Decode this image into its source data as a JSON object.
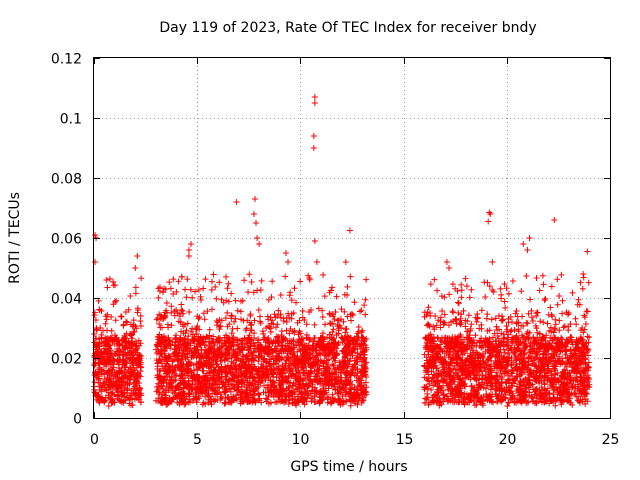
{
  "chart_data": {
    "type": "scatter",
    "title": "Day 119 of 2023, Rate Of TEC Index for receiver bndy",
    "xlabel": "GPS time / hours",
    "ylabel": "ROTI / TECUs",
    "xlim": [
      0,
      25
    ],
    "ylim": [
      0,
      0.12
    ],
    "xticks": [
      "0",
      "5",
      "10",
      "15",
      "20",
      "25"
    ],
    "yticks": [
      "0",
      "0.02",
      "0.04",
      "0.06",
      "0.08",
      "0.1",
      "0.12"
    ],
    "grid": true,
    "marker": "plus",
    "color": "#ff0000",
    "series": [
      {
        "name": "ROTI",
        "segments": [
          [
            0.0,
            2.3
          ],
          [
            3.0,
            13.2
          ],
          [
            16.0,
            24.0
          ]
        ],
        "outliers": [
          {
            "x": 0.05,
            "y": 0.061
          },
          {
            "x": 0.1,
            "y": 0.06
          },
          {
            "x": 0.05,
            "y": 0.052
          },
          {
            "x": 2.1,
            "y": 0.054
          },
          {
            "x": 2.0,
            "y": 0.05
          },
          {
            "x": 4.6,
            "y": 0.056
          },
          {
            "x": 4.7,
            "y": 0.058
          },
          {
            "x": 4.6,
            "y": 0.054
          },
          {
            "x": 6.9,
            "y": 0.072
          },
          {
            "x": 7.8,
            "y": 0.073
          },
          {
            "x": 7.75,
            "y": 0.068
          },
          {
            "x": 7.85,
            "y": 0.065
          },
          {
            "x": 7.9,
            "y": 0.06
          },
          {
            "x": 8.0,
            "y": 0.058
          },
          {
            "x": 9.3,
            "y": 0.055
          },
          {
            "x": 9.4,
            "y": 0.052
          },
          {
            "x": 10.7,
            "y": 0.107
          },
          {
            "x": 10.7,
            "y": 0.105
          },
          {
            "x": 10.65,
            "y": 0.094
          },
          {
            "x": 10.65,
            "y": 0.09
          },
          {
            "x": 10.7,
            "y": 0.059
          },
          {
            "x": 10.8,
            "y": 0.052
          },
          {
            "x": 12.4,
            "y": 0.0625
          },
          {
            "x": 12.2,
            "y": 0.052
          },
          {
            "x": 17.1,
            "y": 0.052
          },
          {
            "x": 17.2,
            "y": 0.05
          },
          {
            "x": 19.15,
            "y": 0.0685
          },
          {
            "x": 19.1,
            "y": 0.0655
          },
          {
            "x": 19.2,
            "y": 0.068
          },
          {
            "x": 19.3,
            "y": 0.052
          },
          {
            "x": 20.8,
            "y": 0.058
          },
          {
            "x": 21.1,
            "y": 0.06
          },
          {
            "x": 21.0,
            "y": 0.056
          },
          {
            "x": 22.3,
            "y": 0.066
          },
          {
            "x": 23.9,
            "y": 0.0555
          },
          {
            "x": 23.7,
            "y": 0.048
          }
        ]
      }
    ]
  }
}
